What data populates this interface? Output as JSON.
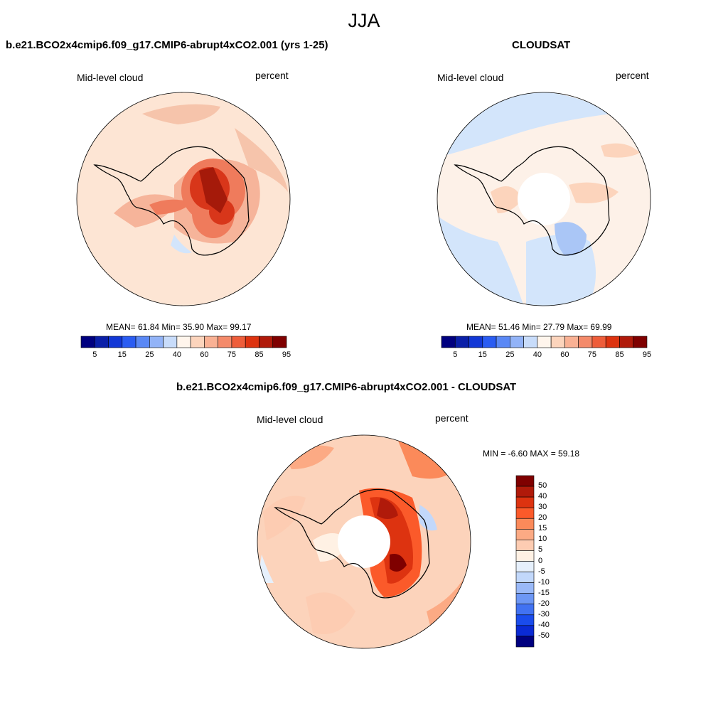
{
  "page": {
    "title": "JJA"
  },
  "panels": {
    "model": {
      "title": "b.e21.BCO2x4cmip6.f09_g17.CMIP6-abrupt4xCO2.001 (yrs 1-25)",
      "left_label": "Mid-level cloud",
      "right_label": "percent",
      "stats": "MEAN=  61.84  Min=  35.90  Max=  99.17"
    },
    "obs": {
      "title": "CLOUDSAT",
      "left_label": "Mid-level cloud",
      "right_label": "percent",
      "stats": "MEAN=  51.46  Min=  27.79  Max=  69.99"
    },
    "diff": {
      "title": "b.e21.BCO2x4cmip6.f09_g17.CMIP6-abrupt4xCO2.001 - CLOUDSAT",
      "left_label": "Mid-level cloud",
      "right_label": "percent",
      "stats": "MIN =  -6.60 MAX =  59.18"
    }
  },
  "colorbars": {
    "abs": {
      "colors": [
        "#00007f",
        "#0a1fa8",
        "#1238d6",
        "#2a5cf2",
        "#5a88f5",
        "#92b3f7",
        "#c8dcfa",
        "#fff5ec",
        "#fcd4bc",
        "#f9b194",
        "#f48a6a",
        "#ee5d3a",
        "#dd3310",
        "#b01a0a",
        "#7f0000"
      ],
      "labels": [
        "5",
        "15",
        "25",
        "40",
        "60",
        "75",
        "85",
        "95"
      ]
    },
    "diff": {
      "colors": [
        "#7f0000",
        "#b01a0a",
        "#dd3310",
        "#fb5a2a",
        "#fb8a5a",
        "#fcaa84",
        "#fdccb2",
        "#fff1e4",
        "#e6f0fc",
        "#c2d8fb",
        "#9ab9f8",
        "#6d97f5",
        "#4172f2",
        "#1a4cec",
        "#0a2ad4",
        "#00007f"
      ],
      "labels": [
        "50",
        "40",
        "30",
        "20",
        "15",
        "10",
        "5",
        "0",
        "-5",
        "-10",
        "-15",
        "-20",
        "-30",
        "-40",
        "-50"
      ]
    }
  },
  "map_colors": {
    "base_model": "#fde5d4",
    "land_low": "#f6b49a",
    "land_mid": "#ef7b5c",
    "land_high": "#d8361a",
    "land_max": "#a51a0a",
    "light_blue": "#d3e5fb",
    "mid_blue": "#aac6f6",
    "base_obs": "#fdf1e8",
    "base_diff": "#fcd3bb"
  }
}
